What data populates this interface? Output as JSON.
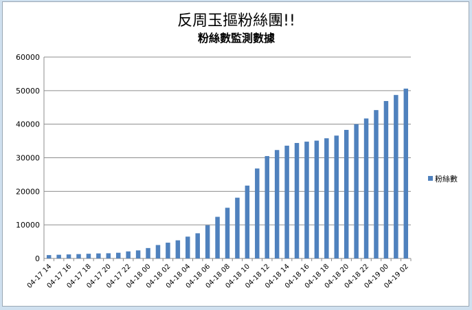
{
  "chart_data": {
    "type": "bar",
    "title": "反周玉摳粉絲團!!",
    "subtitle": "粉絲數監測數據",
    "xlabel": "",
    "ylabel": "",
    "ylim": [
      0,
      60000
    ],
    "yticks": [
      "0",
      "10000",
      "20000",
      "30000",
      "40000",
      "50000",
      "60000"
    ],
    "grid": true,
    "legend": "right",
    "bar_color": "#4f81bd",
    "x_tick_labels": [
      "04-17 14",
      "04-17 16",
      "04-17 18",
      "04-17 20",
      "04-17 22",
      "04-18 00",
      "04-18 02",
      "04-18 04",
      "04-18 06",
      "04-18 08",
      "04-18 10",
      "04-18 12",
      "04-18 14",
      "04-18 16",
      "04-18 18",
      "04-18 20",
      "04-18 22",
      "04-19 00",
      "04-19 02"
    ],
    "series": [
      {
        "name": "粉絲數",
        "values": [
          1000,
          1100,
          1200,
          1300,
          1400,
          1500,
          1550,
          1700,
          2100,
          2400,
          3100,
          4000,
          4700,
          5400,
          6500,
          7500,
          9900,
          12400,
          15100,
          18100,
          21700,
          26800,
          30500,
          32300,
          33600,
          34400,
          34800,
          35100,
          35800,
          36600,
          38300,
          40000,
          41700,
          44200,
          46900,
          48700,
          50600
        ]
      }
    ]
  }
}
